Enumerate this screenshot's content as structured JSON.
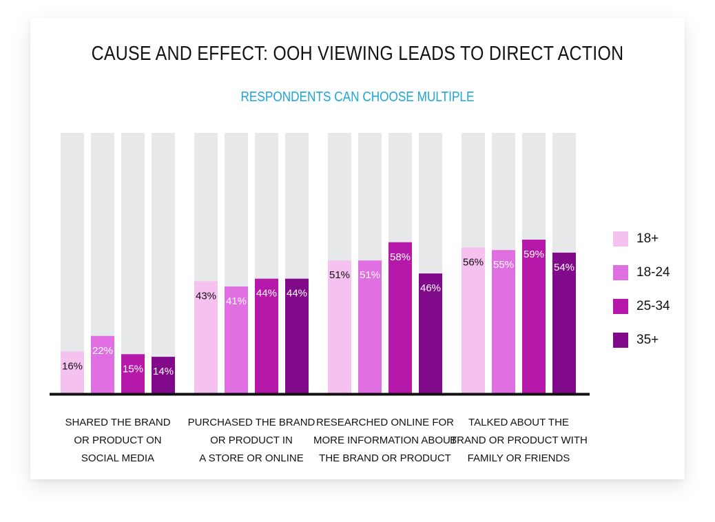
{
  "chart_data": {
    "type": "bar",
    "title": "CAUSE AND EFFECT: OOH VIEWING LEADS TO DIRECT ACTION",
    "subtitle": "RESPONDENTS CAN CHOOSE MULTIPLE",
    "categories": [
      [
        "SHARED THE BRAND",
        "OR PRODUCT ON",
        "SOCIAL MEDIA"
      ],
      [
        "PURCHASED THE BRAND",
        "OR PRODUCT IN",
        "A STORE OR ONLINE"
      ],
      [
        "RESEARCHED ONLINE FOR",
        "MORE INFORMATION ABOUT",
        "THE BRAND OR PRODUCT"
      ],
      [
        "TALKED ABOUT THE",
        "BRAND OR PRODUCT WITH",
        "FAMILY OR FRIENDS"
      ]
    ],
    "series": [
      {
        "name": "18+",
        "values": [
          16,
          43,
          51,
          56
        ],
        "color": "#f5c1ef",
        "label_color": "#111111"
      },
      {
        "name": "18-24",
        "values": [
          22,
          41,
          51,
          55
        ],
        "color": "#e070e2",
        "label_color": "#ffffff"
      },
      {
        "name": "25-34",
        "values": [
          15,
          44,
          58,
          59
        ],
        "color": "#b619a9",
        "label_color": "#ffffff"
      },
      {
        "name": "35+",
        "values": [
          14,
          44,
          46,
          54
        ],
        "color": "#800a8a",
        "label_color": "#ffffff"
      }
    ],
    "value_suffix": "%",
    "ylim": [
      0,
      100
    ],
    "background_bar_color": "#e6e8ea",
    "axis_color": "#111111",
    "grid": false,
    "legend_position": "right"
  }
}
